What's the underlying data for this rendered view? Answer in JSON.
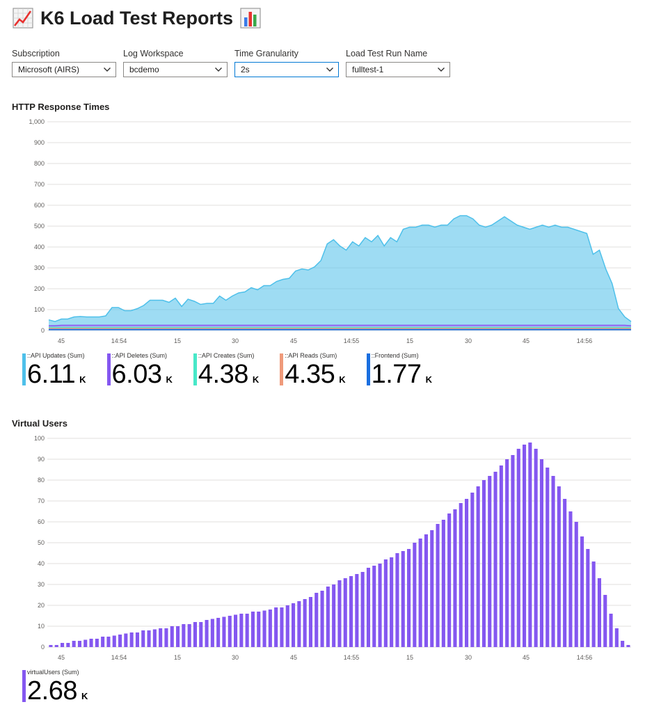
{
  "header": {
    "title": "K6 Load Test Reports",
    "left_icon": "chart-increasing-icon",
    "right_icon": "bar-chart-icon"
  },
  "parameters": [
    {
      "label": "Subscription",
      "value": "Microsoft (AIRS)"
    },
    {
      "label": "Log Workspace",
      "value": "bcdemo"
    },
    {
      "label": "Time Granularity",
      "value": "2s"
    },
    {
      "label": "Load Test Run Name",
      "value": "fulltest-1"
    }
  ],
  "http_chart": {
    "title": "HTTP Response Times"
  },
  "vu_chart": {
    "title": "Virtual Users"
  },
  "chart_data": [
    {
      "type": "area",
      "title": "HTTP Response Times",
      "stacked": true,
      "ylim": [
        0,
        1000
      ],
      "y_ticks": [
        "1,000",
        "900",
        "800",
        "700",
        "600",
        "500",
        "400",
        "300",
        "200",
        "100",
        "0"
      ],
      "x_ticks": [
        "45",
        "14:54",
        "15",
        "30",
        "45",
        "14:55",
        "15",
        "30",
        "45",
        "14:56"
      ],
      "grid": true,
      "colors": {
        "API Updates": "#4ec0ea",
        "API Deletes": "#8457f0",
        "API Creates": "#48e8c8",
        "API Reads": "#ef9a7a",
        "Frontend": "#1a6fe0"
      },
      "series": [
        {
          "name": "::API Updates (Sum)",
          "values": [
            28,
            20,
            30,
            30,
            40,
            42,
            40,
            40,
            40,
            45,
            85,
            85,
            70,
            70,
            80,
            95,
            120,
            120,
            120,
            110,
            130,
            90,
            125,
            115,
            100,
            105,
            105,
            140,
            120,
            140,
            155,
            160,
            180,
            170,
            190,
            190,
            210,
            220,
            225,
            260,
            270,
            265,
            280,
            310,
            390,
            410,
            380,
            360,
            400,
            380,
            420,
            400,
            430,
            380,
            420,
            400,
            460,
            470,
            470,
            480,
            480,
            470,
            480,
            480,
            510,
            525,
            525,
            510,
            480,
            470,
            480,
            500,
            520,
            500,
            480,
            470,
            460,
            470,
            480,
            470,
            480,
            470,
            470,
            460,
            450,
            440,
            340,
            360,
            270,
            200,
            80,
            40,
            20
          ]
        },
        {
          "name": "::API Deletes (Sum)",
          "values": [
            8,
            8,
            10,
            10,
            10,
            10,
            10,
            10,
            10,
            10,
            10,
            10,
            10,
            10,
            10,
            10,
            10,
            10,
            10,
            10,
            10,
            10,
            10,
            10,
            10,
            10,
            10,
            10,
            10,
            10,
            10,
            10,
            10,
            10,
            10,
            10,
            10,
            10,
            10,
            10,
            10,
            10,
            10,
            10,
            10,
            10,
            10,
            10,
            10,
            10,
            10,
            10,
            10,
            10,
            10,
            10,
            10,
            10,
            10,
            10,
            10,
            10,
            10,
            10,
            10,
            10,
            10,
            10,
            10,
            10,
            10,
            10,
            10,
            10,
            10,
            10,
            10,
            10,
            10,
            10,
            10,
            10,
            10,
            10,
            10,
            10,
            10,
            10,
            10,
            10,
            10,
            10,
            8
          ]
        },
        {
          "name": "::API Creates (Sum)",
          "values": [
            5,
            5,
            5,
            5,
            5,
            5,
            5,
            5,
            5,
            5,
            5,
            5,
            5,
            5,
            5,
            5,
            5,
            5,
            5,
            5,
            5,
            5,
            5,
            5,
            5,
            5,
            5,
            5,
            5,
            5,
            5,
            5,
            5,
            5,
            5,
            5,
            5,
            5,
            5,
            5,
            5,
            5,
            5,
            5,
            5,
            5,
            5,
            5,
            5,
            5,
            5,
            5,
            5,
            5,
            5,
            5,
            5,
            5,
            5,
            5,
            5,
            5,
            5,
            5,
            5,
            5,
            5,
            5,
            5,
            5,
            5,
            5,
            5,
            5,
            5,
            5,
            5,
            5,
            5,
            5,
            5,
            5,
            5,
            5,
            5,
            5,
            5,
            5,
            5,
            5,
            5,
            5,
            5
          ]
        },
        {
          "name": "::API Reads (Sum)",
          "values": [
            5,
            5,
            5,
            5,
            5,
            5,
            5,
            5,
            5,
            5,
            5,
            5,
            5,
            5,
            5,
            5,
            5,
            5,
            5,
            5,
            5,
            5,
            5,
            5,
            5,
            5,
            5,
            5,
            5,
            5,
            5,
            5,
            5,
            5,
            5,
            5,
            5,
            5,
            5,
            5,
            5,
            5,
            5,
            5,
            5,
            5,
            5,
            5,
            5,
            5,
            5,
            5,
            5,
            5,
            5,
            5,
            5,
            5,
            5,
            5,
            5,
            5,
            5,
            5,
            5,
            5,
            5,
            5,
            5,
            5,
            5,
            5,
            5,
            5,
            5,
            5,
            5,
            5,
            5,
            5,
            5,
            5,
            5,
            5,
            5,
            5,
            5,
            5,
            5,
            5,
            5,
            5,
            5
          ]
        },
        {
          "name": "::Frontend (Sum)",
          "values": [
            5,
            5,
            5,
            5,
            5,
            5,
            5,
            5,
            5,
            5,
            5,
            5,
            5,
            5,
            5,
            5,
            5,
            5,
            5,
            5,
            5,
            5,
            5,
            5,
            5,
            5,
            5,
            5,
            5,
            5,
            5,
            5,
            5,
            5,
            5,
            5,
            5,
            5,
            5,
            5,
            5,
            5,
            5,
            5,
            5,
            5,
            5,
            5,
            5,
            5,
            5,
            5,
            5,
            5,
            5,
            5,
            5,
            5,
            5,
            5,
            5,
            5,
            5,
            5,
            5,
            5,
            5,
            5,
            5,
            5,
            5,
            5,
            5,
            5,
            5,
            5,
            5,
            5,
            5,
            5,
            5,
            5,
            5,
            5,
            5,
            5,
            5,
            5,
            5,
            5,
            5,
            5,
            5
          ]
        }
      ],
      "totals": [
        {
          "name": "::API Updates (Sum)",
          "value": "6.11",
          "unit": "K",
          "color": "#4ec0ea"
        },
        {
          "name": "::API Deletes (Sum)",
          "value": "6.03",
          "unit": "K",
          "color": "#8457f0"
        },
        {
          "name": "::API Creates (Sum)",
          "value": "4.38",
          "unit": "K",
          "color": "#48e8c8"
        },
        {
          "name": "::API Reads (Sum)",
          "value": "4.35",
          "unit": "K",
          "color": "#ef9a7a"
        },
        {
          "name": "::Frontend (Sum)",
          "value": "1.77",
          "unit": "K",
          "color": "#1a6fe0"
        }
      ]
    },
    {
      "type": "bar",
      "title": "Virtual Users",
      "ylim": [
        0,
        100
      ],
      "y_ticks": [
        "100",
        "90",
        "80",
        "70",
        "60",
        "50",
        "40",
        "30",
        "20",
        "10",
        "0"
      ],
      "x_ticks": [
        "45",
        "14:54",
        "15",
        "30",
        "45",
        "14:55",
        "15",
        "30",
        "45",
        "14:56"
      ],
      "grid": true,
      "color": "#8457f0",
      "series": [
        {
          "name": "virtualUsers (Sum)",
          "values": [
            1,
            1,
            2,
            2,
            3,
            3,
            3.5,
            4,
            4,
            5,
            5,
            5.5,
            6,
            6.5,
            7,
            7,
            8,
            8,
            8.5,
            9,
            9,
            10,
            10,
            11,
            11,
            12,
            12,
            13,
            13.5,
            14,
            14.5,
            15,
            15.5,
            16,
            16,
            17,
            17,
            17.5,
            18,
            19,
            19,
            20,
            21,
            22,
            23,
            24,
            26,
            27,
            29,
            30,
            32,
            33,
            34,
            35,
            36,
            38,
            39,
            40,
            42,
            43,
            45,
            46,
            47,
            50,
            52,
            54,
            56,
            59,
            61,
            64,
            66,
            69,
            71,
            74,
            77,
            80,
            82,
            84,
            87,
            90,
            92,
            95,
            97,
            98,
            95,
            90,
            86,
            82,
            77,
            71,
            65,
            60,
            53,
            47,
            41,
            33,
            25,
            16,
            9,
            3,
            1
          ]
        }
      ],
      "totals": [
        {
          "name": "virtualUsers (Sum)",
          "value": "2.68",
          "unit": "K",
          "color": "#8457f0"
        }
      ]
    }
  ]
}
